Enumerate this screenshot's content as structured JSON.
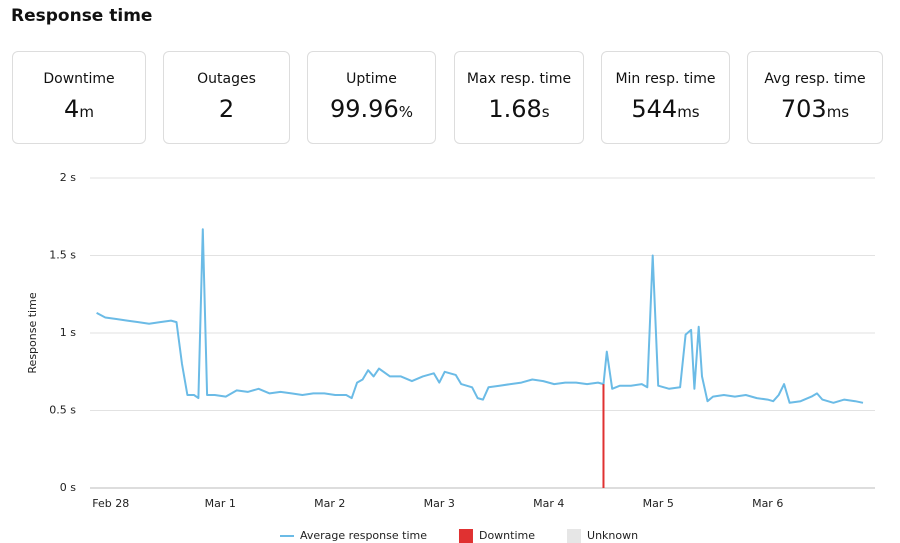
{
  "header": {
    "title": "Response time"
  },
  "stats": [
    {
      "label": "Downtime",
      "value": "4",
      "unit": "m"
    },
    {
      "label": "Outages",
      "value": "2",
      "unit": ""
    },
    {
      "label": "Uptime",
      "value": "99.96",
      "unit": "%"
    },
    {
      "label": "Max resp. time",
      "value": "1.68",
      "unit": "s"
    },
    {
      "label": "Min resp. time",
      "value": "544",
      "unit": "ms"
    },
    {
      "label": "Avg resp. time",
      "value": "703",
      "unit": "ms"
    }
  ],
  "chart_data": {
    "type": "line",
    "ylabel": "Response time",
    "ylim": [
      0,
      2
    ],
    "yticks": [
      {
        "value": 0,
        "label": "0 s"
      },
      {
        "value": 0.5,
        "label": "0.5 s"
      },
      {
        "value": 1,
        "label": "1 s"
      },
      {
        "value": 1.5,
        "label": "1.5 s"
      },
      {
        "value": 2,
        "label": "2 s"
      }
    ],
    "xlim": [
      -0.19,
      6.98
    ],
    "xticks": [
      {
        "value": 0,
        "label": "Feb 28"
      },
      {
        "value": 1,
        "label": "Mar 1"
      },
      {
        "value": 2,
        "label": "Mar 2"
      },
      {
        "value": 3,
        "label": "Mar 3"
      },
      {
        "value": 4,
        "label": "Mar 4"
      },
      {
        "value": 5,
        "label": "Mar 5"
      },
      {
        "value": 6,
        "label": "Mar 6"
      }
    ],
    "grid": true,
    "series": [
      {
        "name": "Average response time",
        "color": "#6bbbe6",
        "x": [
          -0.13,
          -0.05,
          0.05,
          0.15,
          0.25,
          0.35,
          0.45,
          0.55,
          0.6,
          0.65,
          0.7,
          0.76,
          0.8,
          0.84,
          0.88,
          0.95,
          1.05,
          1.15,
          1.25,
          1.35,
          1.45,
          1.55,
          1.65,
          1.75,
          1.85,
          1.95,
          2.05,
          2.15,
          2.2,
          2.25,
          2.3,
          2.35,
          2.4,
          2.45,
          2.55,
          2.65,
          2.75,
          2.85,
          2.95,
          3.0,
          3.05,
          3.15,
          3.2,
          3.3,
          3.35,
          3.4,
          3.45,
          3.55,
          3.65,
          3.75,
          3.85,
          3.95,
          4.05,
          4.15,
          4.25,
          4.35,
          4.45,
          4.5,
          4.53,
          4.58,
          4.65,
          4.75,
          4.85,
          4.9,
          4.95,
          5.0,
          5.1,
          5.2,
          5.25,
          5.3,
          5.33,
          5.37,
          5.4,
          5.45,
          5.5,
          5.6,
          5.7,
          5.8,
          5.9,
          6.0,
          6.05,
          6.1,
          6.15,
          6.2,
          6.3,
          6.4,
          6.45,
          6.5,
          6.6,
          6.7,
          6.8,
          6.87
        ],
        "values": [
          1.13,
          1.1,
          1.09,
          1.08,
          1.07,
          1.06,
          1.07,
          1.08,
          1.07,
          0.8,
          0.6,
          0.6,
          0.58,
          1.67,
          0.6,
          0.6,
          0.59,
          0.63,
          0.62,
          0.64,
          0.61,
          0.62,
          0.61,
          0.6,
          0.61,
          0.61,
          0.6,
          0.6,
          0.58,
          0.68,
          0.7,
          0.76,
          0.72,
          0.77,
          0.72,
          0.72,
          0.69,
          0.72,
          0.74,
          0.68,
          0.75,
          0.73,
          0.67,
          0.65,
          0.58,
          0.57,
          0.65,
          0.66,
          0.67,
          0.68,
          0.7,
          0.69,
          0.67,
          0.68,
          0.68,
          0.67,
          0.68,
          0.67,
          0.88,
          0.64,
          0.66,
          0.66,
          0.67,
          0.65,
          1.5,
          0.66,
          0.64,
          0.65,
          0.99,
          1.02,
          0.64,
          1.04,
          0.72,
          0.56,
          0.59,
          0.6,
          0.59,
          0.6,
          0.58,
          0.57,
          0.56,
          0.6,
          0.67,
          0.55,
          0.56,
          0.59,
          0.61,
          0.57,
          0.55,
          0.57,
          0.56,
          0.55
        ]
      },
      {
        "name": "Downtime",
        "color": "#e03131",
        "x": [
          4.5
        ],
        "values": [
          0.67
        ]
      },
      {
        "name": "Unknown",
        "color": "#e6e6e6",
        "x": [],
        "values": []
      }
    ]
  }
}
